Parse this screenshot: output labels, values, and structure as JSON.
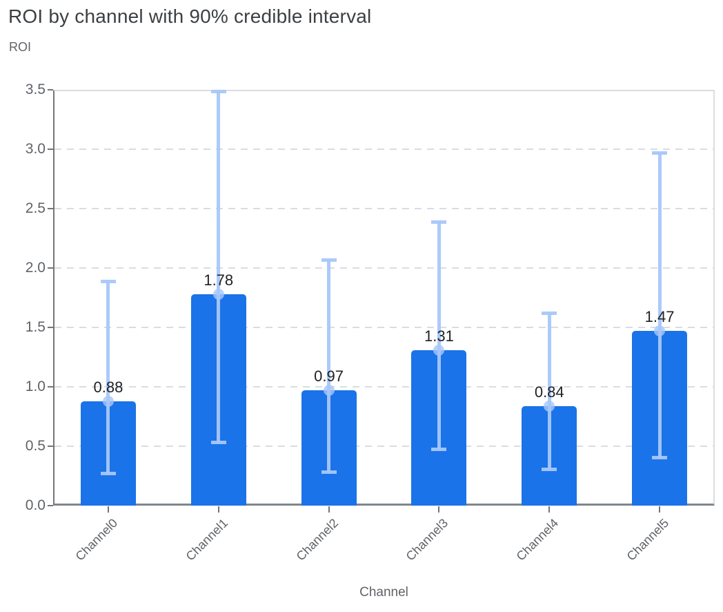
{
  "header": {
    "title": "ROI by channel with 90% credible interval"
  },
  "axes": {
    "y_title": "ROI",
    "x_title": "Channel",
    "y_tick_labels": [
      "0.0",
      "0.5",
      "1.0",
      "1.5",
      "2.0",
      "2.5",
      "3.0",
      "3.5"
    ],
    "x_tick_labels": [
      "Channel0",
      "Channel1",
      "Channel2",
      "Channel3",
      "Channel4",
      "Channel5"
    ]
  },
  "colors": {
    "bar": "#1A73E8",
    "error_bar": "#A8C7FA",
    "gridline": "#DADCE0",
    "axis_line": "#757575",
    "axis_line_bottom": "#80868B",
    "title_text": "#3C4043",
    "axis_text": "#5F6368",
    "data_label_text": "#202124",
    "background": "#FFFFFF"
  },
  "chart_data": {
    "type": "bar",
    "title": "ROI by channel with 90% credible interval",
    "xlabel": "Channel",
    "ylabel": "ROI",
    "categories": [
      "Channel0",
      "Channel1",
      "Channel2",
      "Channel3",
      "Channel4",
      "Channel5"
    ],
    "values": [
      0.88,
      1.78,
      0.97,
      1.31,
      0.84,
      1.47
    ],
    "data_labels": [
      "0.88",
      "1.78",
      "0.97",
      "1.31",
      "0.84",
      "1.47"
    ],
    "error_bars_90pct_credible_interval": {
      "lower": [
        0.27,
        0.53,
        0.28,
        0.47,
        0.3,
        0.4
      ],
      "upper": [
        1.89,
        3.49,
        2.07,
        2.39,
        1.62,
        2.97
      ]
    },
    "ylim": [
      0,
      3.5
    ],
    "yticks": [
      0.0,
      0.5,
      1.0,
      1.5,
      2.0,
      2.5,
      3.0,
      3.5
    ],
    "grid": "horizontal-dashed",
    "legend": "none",
    "x_tick_label_rotation_deg": 45
  }
}
